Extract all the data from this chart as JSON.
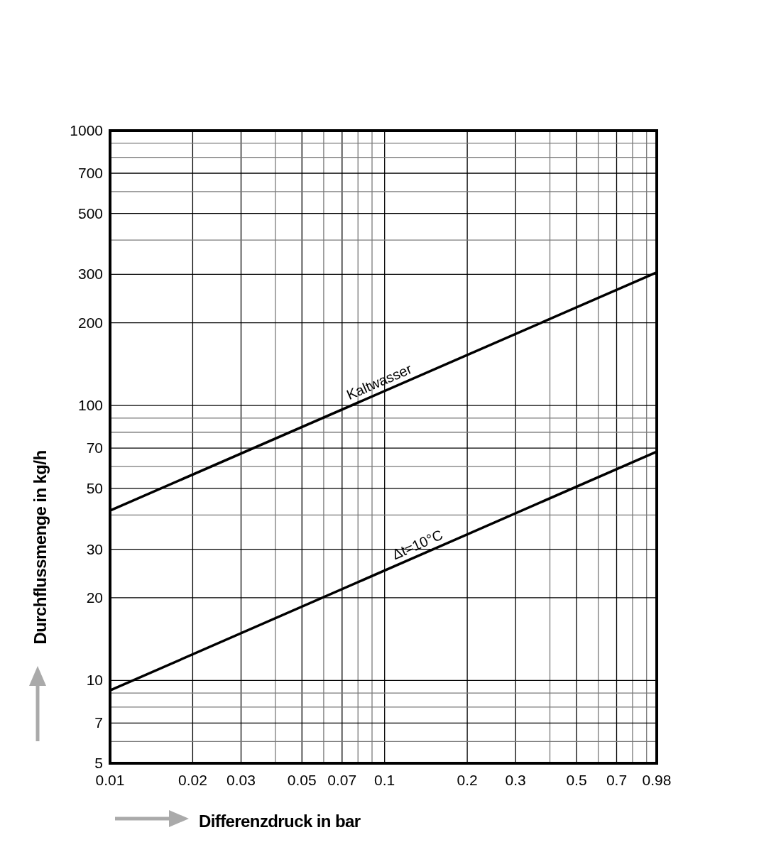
{
  "chart_data": {
    "type": "line",
    "xlabel": "Differenzdruck in bar",
    "ylabel": "Durchflussmenge in kg/h",
    "log": "xy",
    "grid": true,
    "line_style": "solid",
    "xlim": [
      0.01,
      0.98
    ],
    "xticks": [
      0.01,
      0.02,
      0.03,
      {
        "value": 0.04,
        "label": null
      },
      0.05,
      {
        "value": 0.06,
        "label": null
      },
      0.07,
      {
        "value": 0.08,
        "label": null
      },
      {
        "value": 0.09,
        "label": null
      },
      0.1,
      0.2,
      0.3,
      {
        "value": 0.4,
        "label": null
      },
      0.5,
      {
        "value": 0.6,
        "label": null
      },
      0.7,
      {
        "value": 0.8,
        "label": null
      },
      {
        "value": 0.9,
        "label": null
      },
      0.98
    ],
    "ylim": [
      5,
      1000
    ],
    "yticks": [
      5,
      {
        "value": 6,
        "label": null
      },
      7,
      {
        "value": 8,
        "label": null
      },
      {
        "value": 9,
        "label": null
      },
      10,
      20,
      30,
      {
        "value": 40,
        "label": null
      },
      50,
      {
        "value": 60,
        "label": null
      },
      70,
      {
        "value": 80,
        "label": null
      },
      {
        "value": 90,
        "label": null
      },
      100,
      200,
      300,
      {
        "value": 400,
        "label": null
      },
      500,
      {
        "value": 600,
        "label": null
      },
      700,
      {
        "value": 800,
        "label": null
      },
      {
        "value": 900,
        "label": null
      },
      1000
    ],
    "x": [
      0.01,
      0.98
    ],
    "series": [
      {
        "name": "Kaltwasser",
        "color": "#000000",
        "values": [
          41.5,
          305
        ]
      },
      {
        "name": "Δt=10°C",
        "color": "#000000",
        "values": [
          9.2,
          68
        ]
      }
    ]
  }
}
